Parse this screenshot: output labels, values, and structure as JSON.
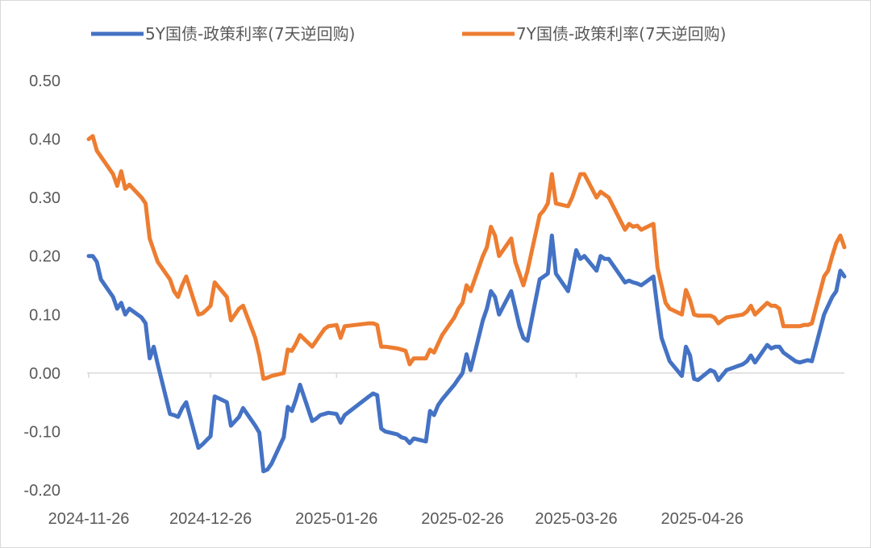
{
  "chart_data": {
    "type": "line",
    "title": "",
    "xlabel": "",
    "ylabel": "",
    "ylim": [
      -0.2,
      0.5
    ],
    "yticks": [
      "0.50",
      "0.40",
      "0.30",
      "0.20",
      "0.10",
      "0.00",
      "-0.10",
      "-0.20"
    ],
    "ytick_values": [
      0.5,
      0.4,
      0.3,
      0.2,
      0.1,
      0.0,
      -0.1,
      -0.2
    ],
    "xticks": [
      "2024-11-26",
      "2024-12-26",
      "2025-01-26",
      "2025-02-26",
      "2025-03-26",
      "2025-04-26"
    ],
    "xlim": [
      "2024-11-26",
      "2025-05-31"
    ],
    "grid": false,
    "legend": "top",
    "series": [
      {
        "name": "5Y国债-政策利率(7天逆回购)",
        "color": "#4472C4",
        "points": [
          [
            "2024-11-26",
            0.2
          ],
          [
            "2024-11-27",
            0.2
          ],
          [
            "2024-11-28",
            0.19
          ],
          [
            "2024-11-29",
            0.16
          ],
          [
            "2024-12-02",
            0.13
          ],
          [
            "2024-12-03",
            0.11
          ],
          [
            "2024-12-04",
            0.12
          ],
          [
            "2024-12-05",
            0.1
          ],
          [
            "2024-12-06",
            0.11
          ],
          [
            "2024-12-09",
            0.095
          ],
          [
            "2024-12-10",
            0.085
          ],
          [
            "2024-12-11",
            0.025
          ],
          [
            "2024-12-12",
            0.045
          ],
          [
            "2024-12-13",
            0.015
          ],
          [
            "2024-12-16",
            -0.07
          ],
          [
            "2024-12-17",
            -0.072
          ],
          [
            "2024-12-18",
            -0.075
          ],
          [
            "2024-12-19",
            -0.06
          ],
          [
            "2024-12-20",
            -0.05
          ],
          [
            "2024-12-23",
            -0.128
          ],
          [
            "2024-12-24",
            -0.122
          ],
          [
            "2024-12-25",
            -0.115
          ],
          [
            "2024-12-26",
            -0.108
          ],
          [
            "2024-12-27",
            -0.04
          ],
          [
            "2024-12-30",
            -0.05
          ],
          [
            "2024-12-31",
            -0.09
          ],
          [
            "2025-01-02",
            -0.075
          ],
          [
            "2025-01-03",
            -0.06
          ],
          [
            "2025-01-06",
            -0.09
          ],
          [
            "2025-01-07",
            -0.102
          ],
          [
            "2025-01-08",
            -0.168
          ],
          [
            "2025-01-09",
            -0.165
          ],
          [
            "2025-01-10",
            -0.155
          ],
          [
            "2025-01-13",
            -0.11
          ],
          [
            "2025-01-14",
            -0.058
          ],
          [
            "2025-01-15",
            -0.065
          ],
          [
            "2025-01-16",
            -0.045
          ],
          [
            "2025-01-17",
            -0.02
          ],
          [
            "2025-01-20",
            -0.082
          ],
          [
            "2025-01-21",
            -0.078
          ],
          [
            "2025-01-22",
            -0.072
          ],
          [
            "2025-01-23",
            -0.07
          ],
          [
            "2025-01-24",
            -0.068
          ],
          [
            "2025-01-26",
            -0.07
          ],
          [
            "2025-01-27",
            -0.085
          ],
          [
            "2025-01-28",
            -0.072
          ],
          [
            "2025-02-03",
            -0.04
          ],
          [
            "2025-02-04",
            -0.035
          ],
          [
            "2025-02-05",
            -0.038
          ],
          [
            "2025-02-06",
            -0.095
          ],
          [
            "2025-02-07",
            -0.1
          ],
          [
            "2025-02-10",
            -0.105
          ],
          [
            "2025-02-11",
            -0.11
          ],
          [
            "2025-02-12",
            -0.112
          ],
          [
            "2025-02-13",
            -0.12
          ],
          [
            "2025-02-14",
            -0.112
          ],
          [
            "2025-02-17",
            -0.117
          ],
          [
            "2025-02-18",
            -0.065
          ],
          [
            "2025-02-19",
            -0.072
          ],
          [
            "2025-02-20",
            -0.055
          ],
          [
            "2025-02-21",
            -0.045
          ],
          [
            "2025-02-24",
            -0.02
          ],
          [
            "2025-02-25",
            -0.01
          ],
          [
            "2025-02-26",
            0.0
          ],
          [
            "2025-02-27",
            0.032
          ],
          [
            "2025-02-28",
            0.005
          ],
          [
            "2025-03-03",
            0.09
          ],
          [
            "2025-03-04",
            0.11
          ],
          [
            "2025-03-05",
            0.14
          ],
          [
            "2025-03-06",
            0.13
          ],
          [
            "2025-03-07",
            0.1
          ],
          [
            "2025-03-10",
            0.14
          ],
          [
            "2025-03-11",
            0.11
          ],
          [
            "2025-03-12",
            0.08
          ],
          [
            "2025-03-13",
            0.06
          ],
          [
            "2025-03-14",
            0.055
          ],
          [
            "2025-03-17",
            0.16
          ],
          [
            "2025-03-18",
            0.165
          ],
          [
            "2025-03-19",
            0.17
          ],
          [
            "2025-03-20",
            0.235
          ],
          [
            "2025-03-21",
            0.17
          ],
          [
            "2025-03-24",
            0.14
          ],
          [
            "2025-03-25",
            0.175
          ],
          [
            "2025-03-26",
            0.21
          ],
          [
            "2025-03-27",
            0.195
          ],
          [
            "2025-03-28",
            0.2
          ],
          [
            "2025-03-31",
            0.175
          ],
          [
            "2025-04-01",
            0.2
          ],
          [
            "2025-04-02",
            0.195
          ],
          [
            "2025-04-03",
            0.195
          ],
          [
            "2025-04-07",
            0.155
          ],
          [
            "2025-04-08",
            0.158
          ],
          [
            "2025-04-09",
            0.155
          ],
          [
            "2025-04-10",
            0.153
          ],
          [
            "2025-04-11",
            0.15
          ],
          [
            "2025-04-14",
            0.165
          ],
          [
            "2025-04-15",
            0.11
          ],
          [
            "2025-04-16",
            0.06
          ],
          [
            "2025-04-17",
            0.04
          ],
          [
            "2025-04-18",
            0.02
          ],
          [
            "2025-04-21",
            -0.005
          ],
          [
            "2025-04-22",
            0.045
          ],
          [
            "2025-04-23",
            0.03
          ],
          [
            "2025-04-24",
            -0.01
          ],
          [
            "2025-04-25",
            -0.012
          ],
          [
            "2025-04-28",
            0.005
          ],
          [
            "2025-04-29",
            0.002
          ],
          [
            "2025-04-30",
            -0.012
          ],
          [
            "2025-05-02",
            0.005
          ],
          [
            "2025-05-06",
            0.015
          ],
          [
            "2025-05-07",
            0.02
          ],
          [
            "2025-05-08",
            0.03
          ],
          [
            "2025-05-09",
            0.018
          ],
          [
            "2025-05-12",
            0.048
          ],
          [
            "2025-05-13",
            0.042
          ],
          [
            "2025-05-14",
            0.045
          ],
          [
            "2025-05-15",
            0.045
          ],
          [
            "2025-05-16",
            0.035
          ],
          [
            "2025-05-19",
            0.02
          ],
          [
            "2025-05-20",
            0.018
          ],
          [
            "2025-05-21",
            0.02
          ],
          [
            "2025-05-22",
            0.022
          ],
          [
            "2025-05-23",
            0.02
          ],
          [
            "2025-05-26",
            0.1
          ],
          [
            "2025-05-27",
            0.115
          ],
          [
            "2025-05-28",
            0.13
          ],
          [
            "2025-05-29",
            0.14
          ],
          [
            "2025-05-30",
            0.175
          ],
          [
            "2025-05-31",
            0.165
          ]
        ]
      },
      {
        "name": "7Y国债-政策利率(7天逆回购)",
        "color": "#ED7D31",
        "points": [
          [
            "2024-11-26",
            0.4
          ],
          [
            "2024-11-27",
            0.405
          ],
          [
            "2024-11-28",
            0.38
          ],
          [
            "2024-11-29",
            0.37
          ],
          [
            "2024-12-02",
            0.34
          ],
          [
            "2024-12-03",
            0.32
          ],
          [
            "2024-12-04",
            0.345
          ],
          [
            "2024-12-05",
            0.315
          ],
          [
            "2024-12-06",
            0.322
          ],
          [
            "2024-12-09",
            0.3
          ],
          [
            "2024-12-10",
            0.29
          ],
          [
            "2024-12-11",
            0.23
          ],
          [
            "2024-12-12",
            0.21
          ],
          [
            "2024-12-13",
            0.19
          ],
          [
            "2024-12-16",
            0.16
          ],
          [
            "2024-12-17",
            0.14
          ],
          [
            "2024-12-18",
            0.13
          ],
          [
            "2024-12-19",
            0.15
          ],
          [
            "2024-12-20",
            0.165
          ],
          [
            "2024-12-23",
            0.1
          ],
          [
            "2024-12-24",
            0.102
          ],
          [
            "2024-12-25",
            0.108
          ],
          [
            "2024-12-26",
            0.115
          ],
          [
            "2024-12-27",
            0.155
          ],
          [
            "2024-12-30",
            0.13
          ],
          [
            "2024-12-31",
            0.09
          ],
          [
            "2025-01-02",
            0.11
          ],
          [
            "2025-01-03",
            0.115
          ],
          [
            "2025-01-06",
            0.06
          ],
          [
            "2025-01-07",
            0.03
          ],
          [
            "2025-01-08",
            -0.01
          ],
          [
            "2025-01-09",
            -0.008
          ],
          [
            "2025-01-10",
            -0.005
          ],
          [
            "2025-01-13",
            0.0
          ],
          [
            "2025-01-14",
            0.04
          ],
          [
            "2025-01-15",
            0.038
          ],
          [
            "2025-01-16",
            0.05
          ],
          [
            "2025-01-17",
            0.065
          ],
          [
            "2025-01-20",
            0.045
          ],
          [
            "2025-01-21",
            0.055
          ],
          [
            "2025-01-22",
            0.065
          ],
          [
            "2025-01-23",
            0.075
          ],
          [
            "2025-01-24",
            0.08
          ],
          [
            "2025-01-26",
            0.082
          ],
          [
            "2025-01-27",
            0.06
          ],
          [
            "2025-01-28",
            0.08
          ],
          [
            "2025-02-03",
            0.085
          ],
          [
            "2025-02-04",
            0.085
          ],
          [
            "2025-02-05",
            0.082
          ],
          [
            "2025-02-06",
            0.045
          ],
          [
            "2025-02-07",
            0.045
          ],
          [
            "2025-02-10",
            0.042
          ],
          [
            "2025-02-11",
            0.04
          ],
          [
            "2025-02-12",
            0.038
          ],
          [
            "2025-02-13",
            0.015
          ],
          [
            "2025-02-14",
            0.025
          ],
          [
            "2025-02-17",
            0.025
          ],
          [
            "2025-02-18",
            0.04
          ],
          [
            "2025-02-19",
            0.035
          ],
          [
            "2025-02-20",
            0.05
          ],
          [
            "2025-02-21",
            0.065
          ],
          [
            "2025-02-24",
            0.095
          ],
          [
            "2025-02-25",
            0.11
          ],
          [
            "2025-02-26",
            0.12
          ],
          [
            "2025-02-27",
            0.15
          ],
          [
            "2025-02-28",
            0.14
          ],
          [
            "2025-03-03",
            0.2
          ],
          [
            "2025-03-04",
            0.215
          ],
          [
            "2025-03-05",
            0.25
          ],
          [
            "2025-03-06",
            0.235
          ],
          [
            "2025-03-07",
            0.2
          ],
          [
            "2025-03-10",
            0.23
          ],
          [
            "2025-03-11",
            0.19
          ],
          [
            "2025-03-12",
            0.17
          ],
          [
            "2025-03-13",
            0.15
          ],
          [
            "2025-03-14",
            0.175
          ],
          [
            "2025-03-17",
            0.27
          ],
          [
            "2025-03-18",
            0.278
          ],
          [
            "2025-03-19",
            0.29
          ],
          [
            "2025-03-20",
            0.34
          ],
          [
            "2025-03-21",
            0.29
          ],
          [
            "2025-03-24",
            0.285
          ],
          [
            "2025-03-25",
            0.3
          ],
          [
            "2025-03-26",
            0.32
          ],
          [
            "2025-03-27",
            0.34
          ],
          [
            "2025-03-28",
            0.34
          ],
          [
            "2025-03-31",
            0.3
          ],
          [
            "2025-04-01",
            0.31
          ],
          [
            "2025-04-02",
            0.305
          ],
          [
            "2025-04-03",
            0.3
          ],
          [
            "2025-04-07",
            0.245
          ],
          [
            "2025-04-08",
            0.255
          ],
          [
            "2025-04-09",
            0.25
          ],
          [
            "2025-04-10",
            0.252
          ],
          [
            "2025-04-11",
            0.245
          ],
          [
            "2025-04-14",
            0.255
          ],
          [
            "2025-04-15",
            0.18
          ],
          [
            "2025-04-16",
            0.15
          ],
          [
            "2025-04-17",
            0.12
          ],
          [
            "2025-04-18",
            0.11
          ],
          [
            "2025-04-21",
            0.1
          ],
          [
            "2025-04-22",
            0.142
          ],
          [
            "2025-04-23",
            0.125
          ],
          [
            "2025-04-24",
            0.1
          ],
          [
            "2025-04-25",
            0.098
          ],
          [
            "2025-04-28",
            0.098
          ],
          [
            "2025-04-29",
            0.095
          ],
          [
            "2025-04-30",
            0.085
          ],
          [
            "2025-05-02",
            0.095
          ],
          [
            "2025-05-06",
            0.1
          ],
          [
            "2025-05-07",
            0.105
          ],
          [
            "2025-05-08",
            0.115
          ],
          [
            "2025-05-09",
            0.1
          ],
          [
            "2025-05-12",
            0.12
          ],
          [
            "2025-05-13",
            0.115
          ],
          [
            "2025-05-14",
            0.115
          ],
          [
            "2025-05-15",
            0.11
          ],
          [
            "2025-05-16",
            0.08
          ],
          [
            "2025-05-19",
            0.08
          ],
          [
            "2025-05-20",
            0.08
          ],
          [
            "2025-05-21",
            0.082
          ],
          [
            "2025-05-22",
            0.082
          ],
          [
            "2025-05-23",
            0.085
          ],
          [
            "2025-05-26",
            0.165
          ],
          [
            "2025-05-27",
            0.175
          ],
          [
            "2025-05-28",
            0.2
          ],
          [
            "2025-05-29",
            0.222
          ],
          [
            "2025-05-30",
            0.235
          ],
          [
            "2025-05-31",
            0.215
          ]
        ]
      }
    ]
  }
}
